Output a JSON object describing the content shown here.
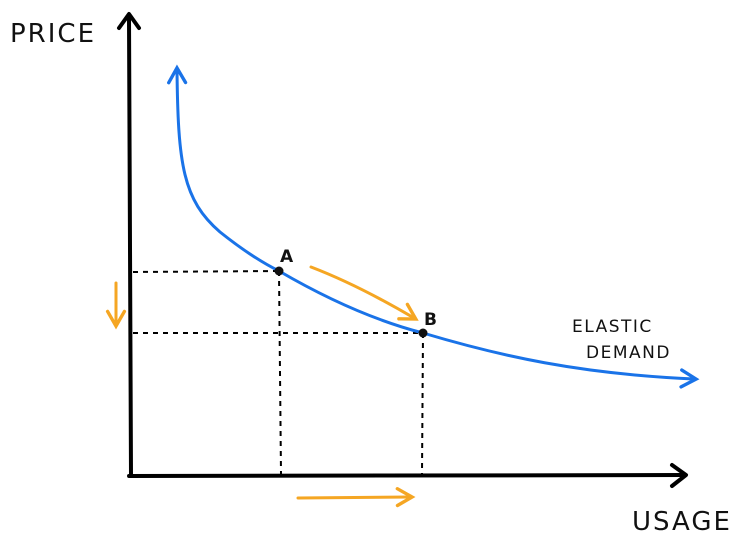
{
  "axes": {
    "y_label": "PRICE",
    "x_label": "USAGE"
  },
  "curve": {
    "label_line1": "ELASTIC",
    "label_line2": "DEMAND",
    "color": "#1a73e8"
  },
  "points": {
    "a_label": "A",
    "b_label": "B"
  },
  "colors": {
    "axis": "#000000",
    "guide": "#000000",
    "change_arrow": "#f5a623"
  }
}
